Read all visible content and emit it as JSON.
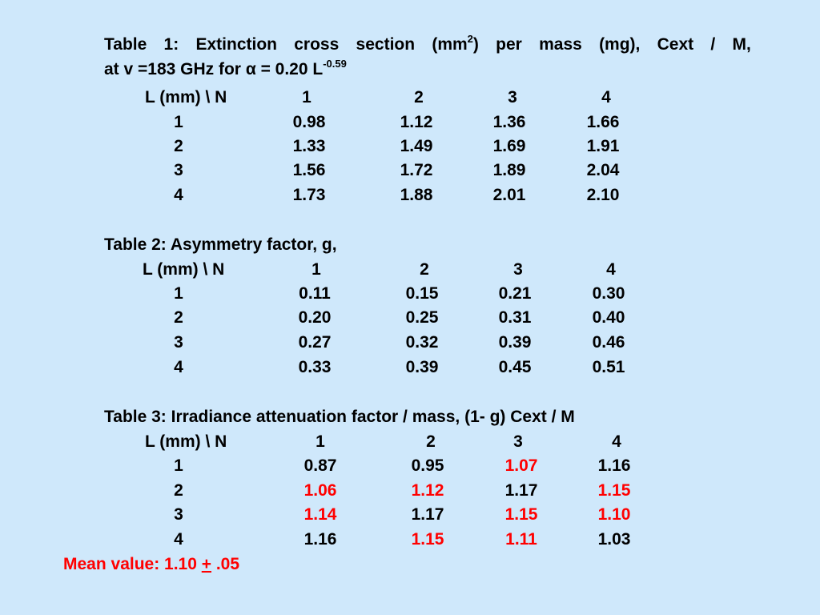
{
  "table1": {
    "title_line1": {
      "pre": "Table 1: Extinction cross section (mm",
      "sup": "2",
      "post": ") per mass (mg), Cext / M,"
    },
    "title_line2": {
      "pre": "at v =183 GHz  for α = 0.20 L",
      "sup": "-0.59"
    },
    "header": "L (mm) \\  N",
    "columns": [
      "1",
      "2",
      "3",
      "4"
    ],
    "rows": [
      {
        "L": "1",
        "values": [
          "0.98",
          "1.12",
          "1.36",
          "1.66"
        ]
      },
      {
        "L": "2",
        "values": [
          "1.33",
          "1.49",
          "1.69",
          "1.91"
        ]
      },
      {
        "L": "3",
        "values": [
          "1.56",
          "1.72",
          "1.89",
          "2.04"
        ]
      },
      {
        "L": "4",
        "values": [
          "1.73",
          "1.88",
          "2.01",
          "2.10"
        ]
      }
    ]
  },
  "table2": {
    "title": "Table 2: Asymmetry factor, g,",
    "header": "L (mm) \\  N",
    "columns": [
      "1",
      "2",
      "3",
      "4"
    ],
    "rows": [
      {
        "L": "1",
        "values": [
          "0.11",
          "0.15",
          "0.21",
          "0.30"
        ]
      },
      {
        "L": "2",
        "values": [
          "0.20",
          "0.25",
          "0.31",
          "0.40"
        ]
      },
      {
        "L": "3",
        "values": [
          "0.27",
          "0.32",
          "0.39",
          "0.46"
        ]
      },
      {
        "L": "4",
        "values": [
          "0.33",
          "0.39",
          "0.45",
          "0.51"
        ]
      }
    ]
  },
  "table3": {
    "title": "Table 3: Irradiance attenuation factor / mass, (1- g) Cext / M",
    "header": "L (mm) \\  N",
    "columns": [
      "1",
      "2",
      "3",
      "4"
    ],
    "rows": [
      {
        "L": "1",
        "values": [
          "0.87",
          "0.95",
          "1.07",
          "1.16"
        ],
        "highlight": [
          false,
          false,
          true,
          false
        ]
      },
      {
        "L": "2",
        "values": [
          "1.06",
          "1.12",
          "1.17",
          "1.15"
        ],
        "highlight": [
          true,
          true,
          false,
          true
        ]
      },
      {
        "L": "3",
        "values": [
          "1.14",
          "1.17",
          "1.15",
          "1.10"
        ],
        "highlight": [
          true,
          false,
          true,
          true
        ]
      },
      {
        "L": "4",
        "values": [
          "1.16",
          "1.15",
          "1.11",
          "1.03"
        ],
        "highlight": [
          false,
          true,
          true,
          false
        ]
      }
    ]
  },
  "mean": {
    "label": "Mean value: 1.10 ",
    "pm": "+",
    "tail": " .05"
  },
  "colors": {
    "background": "#cfe8fb",
    "text": "#000000",
    "highlight": "#ff0000"
  }
}
